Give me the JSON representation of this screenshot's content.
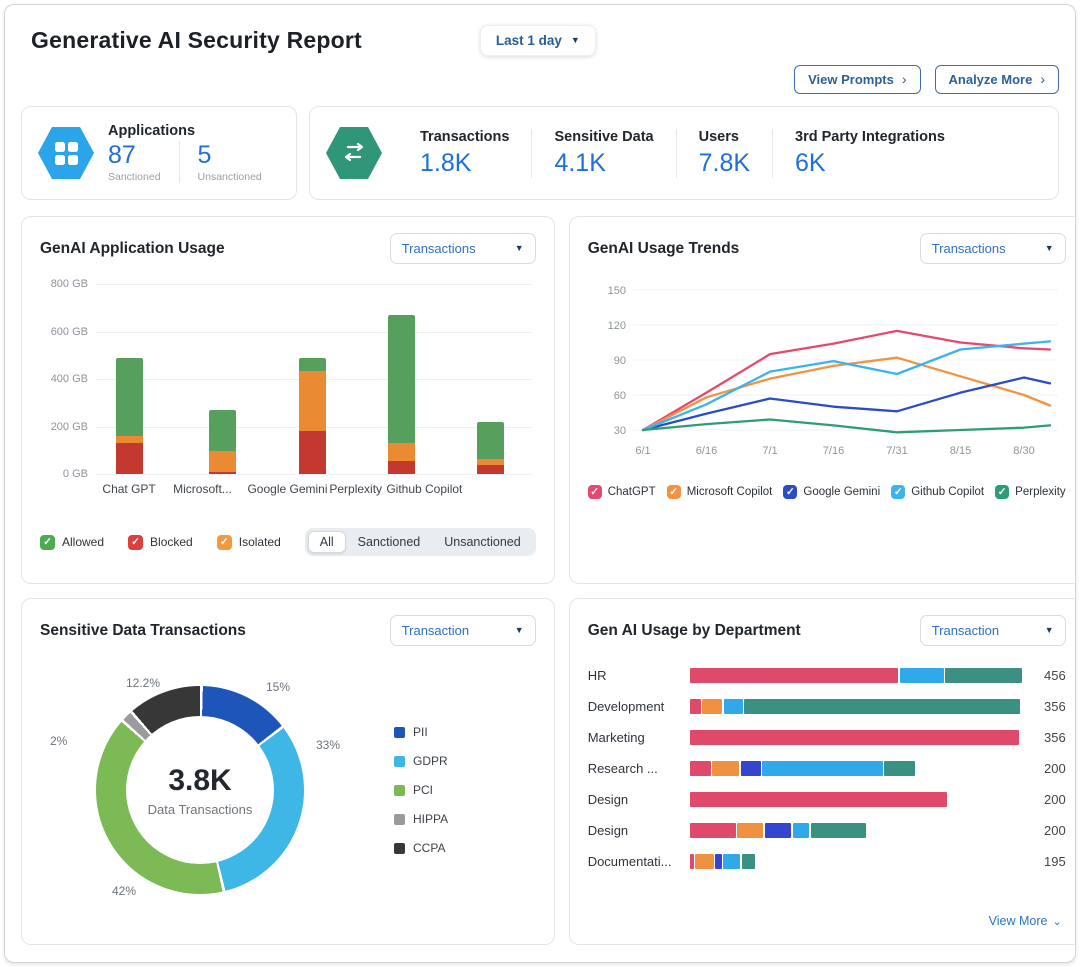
{
  "header": {
    "title": "Generative AI Security Report",
    "time_range": "Last 1 day",
    "buttons": [
      {
        "label": "View Prompts"
      },
      {
        "label": "Analyze More"
      }
    ]
  },
  "stats": {
    "applications": {
      "label": "Applications",
      "icon": "apps-grid-hexagon-icon",
      "icon_color": "#2ba4ea",
      "counts": [
        {
          "value": "87",
          "label": "Sanctioned"
        },
        {
          "value": "5",
          "label": "Unsanctioned"
        }
      ]
    },
    "transactions_card": {
      "icon": "swap-arrows-hexagon-icon",
      "icon_color": "#2f9678",
      "metrics": [
        {
          "label": "Transactions",
          "value": "1.8K"
        },
        {
          "label": "Sensitive Data",
          "value": "4.1K"
        },
        {
          "label": "Users",
          "value": "7.8K"
        },
        {
          "label": "3rd Party Integrations",
          "value": "6K"
        }
      ]
    }
  },
  "app_usage": {
    "title": "GenAI Application Usage",
    "dropdown_value": "Transactions",
    "chart_data": {
      "type": "bar",
      "stacked": true,
      "unit": "GB",
      "categories": [
        "Chat GPT",
        "Microsoft...",
        "Google Gemini",
        "Perplexity",
        "Github Copilot"
      ],
      "series": [
        {
          "name": "Blocked",
          "color": "#c3392f",
          "values": [
            130,
            10,
            180,
            55,
            40
          ]
        },
        {
          "name": "Isolated",
          "color": "#ea8a33",
          "values": [
            30,
            85,
            255,
            75,
            25
          ]
        },
        {
          "name": "Allowed",
          "color": "#569f5d",
          "values": [
            330,
            175,
            55,
            540,
            155
          ]
        }
      ],
      "totals": [
        490,
        270,
        490,
        670,
        220
      ],
      "ylim": [
        0,
        800
      ],
      "yticks": [
        "0 GB",
        "200 GB",
        "400 GB",
        "600 GB",
        "800 GB"
      ],
      "grid": true
    },
    "legend": [
      {
        "label": "Allowed",
        "color": "#4cab50"
      },
      {
        "label": "Blocked",
        "color": "#dd3f39"
      },
      {
        "label": "Isolated",
        "color": "#f29a3f"
      }
    ],
    "segmented": {
      "options": [
        "All",
        "Sanctioned",
        "Unsanctioned"
      ],
      "active": "All"
    }
  },
  "usage_trends": {
    "title": "GenAI Usage Trends",
    "dropdown_value": "Transactions",
    "chart_data": {
      "type": "line",
      "x_labels": [
        "6/1",
        "6/16",
        "7/1",
        "7/16",
        "7/31",
        "8/15",
        "8/30"
      ],
      "yticks": [
        30,
        60,
        90,
        120,
        150
      ],
      "ylim": [
        30,
        150
      ],
      "grid": true,
      "legend_position": "bottom",
      "series": [
        {
          "name": "ChatGPT",
          "color": "#e8486d",
          "values": [
            30,
            62,
            95,
            104,
            115,
            105,
            100,
            99
          ]
        },
        {
          "name": "Microsoft Copilot",
          "color": "#f29343",
          "values": [
            30,
            58,
            74,
            85,
            92,
            76,
            60,
            51
          ]
        },
        {
          "name": "Google Gemini",
          "color": "#2b4cc8",
          "values": [
            30,
            44,
            57,
            50,
            46,
            62,
            75,
            70
          ]
        },
        {
          "name": "Github Copilot",
          "color": "#3cb3ef",
          "values": [
            30,
            52,
            80,
            89,
            78,
            99,
            104,
            106
          ]
        },
        {
          "name": "Perplexity",
          "color": "#2f9c79",
          "values": [
            30,
            35,
            39,
            34,
            28,
            30,
            32,
            34
          ]
        }
      ]
    }
  },
  "sensitive": {
    "title": "Sensitive Data Transactions",
    "dropdown_value": "Transaction",
    "chart_data": {
      "type": "pie",
      "donut": true,
      "center_value": "3.8K",
      "center_label": "Data Transactions",
      "slices": [
        {
          "label": "PII",
          "pct": 15,
          "display": "15%",
          "color": "#1d56b8"
        },
        {
          "label": "GDPR",
          "pct": 33,
          "display": "33%",
          "color": "#3eb7e6"
        },
        {
          "label": "PCI",
          "pct": 42,
          "display": "42%",
          "color": "#7cba55"
        },
        {
          "label": "HIPPA",
          "pct": 2,
          "display": "2%",
          "color": "#9b9b9b"
        },
        {
          "label": "CCPA",
          "pct": 12.2,
          "display": "12.2%",
          "color": "#373737"
        }
      ],
      "legend_position": "right"
    }
  },
  "department": {
    "title": "Gen AI Usage by Department",
    "dropdown_value": "Transaction",
    "view_more": "View More",
    "chart_data": {
      "type": "bar",
      "orientation": "horizontal",
      "stacked": true,
      "colors": {
        "crimson": "#df4a6b",
        "orange": "#ee9140",
        "indigo": "#3545cf",
        "lightblue": "#2fa9e9",
        "teal": "#3a9182"
      },
      "rows": [
        {
          "label": "HR",
          "value": 456,
          "width_pct": 100,
          "segments": [
            {
              "color": "crimson",
              "pct": 63.4
            },
            {
              "color": "lightblue",
              "pct": 13.4
            },
            {
              "color": "teal",
              "pct": 23.2
            }
          ]
        },
        {
          "label": "Development",
          "value": 356,
          "width_pct": 99.5,
          "segments": [
            {
              "color": "crimson",
              "pct": 3.4
            },
            {
              "color": "orange",
              "pct": 6.2
            },
            {
              "color": "lightblue",
              "pct": 5.7
            },
            {
              "color": "teal",
              "pct": 84.7
            }
          ]
        },
        {
          "label": "Marketing",
          "value": 356,
          "width_pct": 99.3,
          "segments": [
            {
              "color": "crimson",
              "pct": 100
            }
          ]
        },
        {
          "label": "Research ...",
          "value": 200,
          "width_pct": 68,
          "segments": [
            {
              "color": "crimson",
              "pct": 9.6
            },
            {
              "color": "orange",
              "pct": 12.2
            },
            {
              "color": "indigo",
              "pct": 9.1
            },
            {
              "color": "lightblue",
              "pct": 55
            },
            {
              "color": "teal",
              "pct": 14.1
            }
          ]
        },
        {
          "label": "Design",
          "value": 200,
          "width_pct": 77.6,
          "segments": [
            {
              "color": "crimson",
              "pct": 100
            }
          ]
        },
        {
          "label": "Design",
          "value": 200,
          "width_pct": 53,
          "segments": [
            {
              "color": "crimson",
              "pct": 27.2
            },
            {
              "color": "orange",
              "pct": 15.1
            },
            {
              "color": "indigo",
              "pct": 15.5
            },
            {
              "color": "lightblue",
              "pct": 9.7
            },
            {
              "color": "teal",
              "pct": 32.4
            }
          ]
        },
        {
          "label": "Documentati...",
          "value": 195,
          "width_pct": 19.6,
          "segments": [
            {
              "color": "crimson",
              "pct": 6.8
            },
            {
              "color": "orange",
              "pct": 31.6
            },
            {
              "color": "indigo",
              "pct": 10.5
            },
            {
              "color": "lightblue",
              "pct": 28.9
            },
            {
              "color": "teal",
              "pct": 22.2
            }
          ]
        }
      ]
    }
  }
}
